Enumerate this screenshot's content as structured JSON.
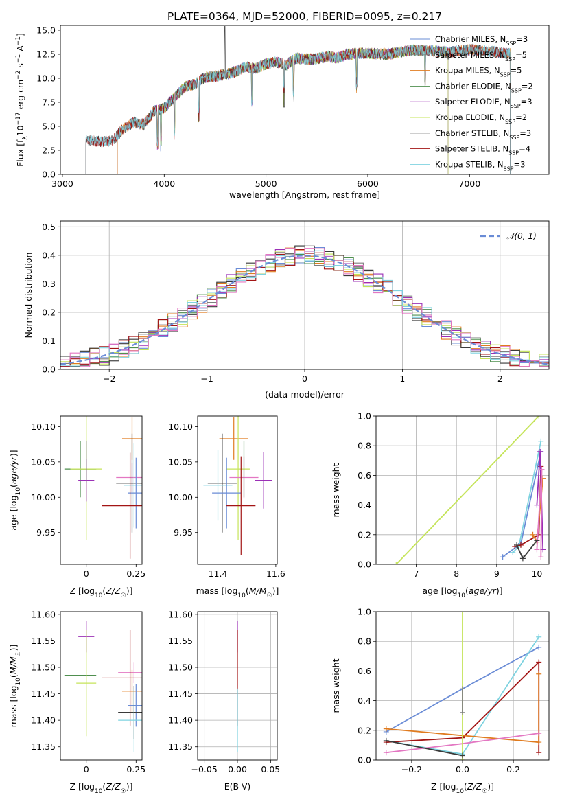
{
  "figure_title": "PLATE=0364, MJD=52000, FIBERID=0095, z=0.217",
  "colors": {
    "Chabrier MILES": "#6a8cd6",
    "Salpeter MILES": "#7f7f7f",
    "Kroupa MILES": "#e07b1f",
    "Chabrier ELODIE": "#4f8f4f",
    "Salpeter ELODIE": "#9b30b6",
    "Kroupa ELODIE": "#c5e45a",
    "Chabrier STELIB": "#3a3a3a",
    "Salpeter STELIB": "#a31515",
    "Kroupa STELIB": "#7fd3e0",
    "Pink": "#e377c2",
    "Gauss": "#6a8cd6"
  },
  "chart_data": [
    {
      "id": "spectrum",
      "type": "line",
      "xlabel": "wavelength [Angstrom, rest frame]",
      "ylabel": "Flux [f_λ10^-17 erg cm^-2 s^-1 A^-1]",
      "xlim": [
        2980,
        7780
      ],
      "ylim": [
        0,
        15.5
      ],
      "xticks": [
        3000,
        4000,
        5000,
        6000,
        7000
      ],
      "yticks": [
        "0.0",
        "2.5",
        "5.0",
        "7.5",
        "10.0",
        "12.5",
        "15.0"
      ],
      "legend": [
        {
          "base": "Chabrier MILES",
          "n": 3
        },
        {
          "base": "Salpeter MILES",
          "n": 5
        },
        {
          "base": "Kroupa MILES",
          "n": 5
        },
        {
          "base": "Chabrier ELODIE",
          "n": 2
        },
        {
          "base": "Salpeter ELODIE",
          "n": 3
        },
        {
          "base": "Kroupa ELODIE",
          "n": 2
        },
        {
          "base": "Chabrier STELIB",
          "n": 3
        },
        {
          "base": "Salpeter STELIB",
          "n": 4
        },
        {
          "base": "Kroupa STELIB",
          "n": 3
        }
      ],
      "continuum_x": [
        3200,
        3300,
        3400,
        3500,
        3600,
        3700,
        3800,
        3900,
        4000,
        4100,
        4200,
        4300,
        4400,
        4500,
        4600,
        4700,
        4800,
        4900,
        5000,
        5100,
        5200,
        5300,
        5400,
        5500,
        5600,
        5700,
        5800,
        5900,
        6000,
        6200,
        6400,
        6600,
        6800,
        7000,
        7200,
        7400
      ],
      "continuum_y": [
        3.6,
        3.5,
        3.4,
        3.6,
        4.8,
        5.4,
        5.2,
        6.6,
        6.9,
        8.0,
        9.1,
        9.4,
        10.1,
        10.2,
        10.4,
        10.7,
        11.2,
        11.0,
        11.5,
        11.7,
        11.4,
        12.1,
        12.0,
        12.0,
        12.3,
        12.1,
        12.5,
        12.6,
        12.6,
        12.5,
        12.9,
        12.9,
        12.7,
        13.0,
        12.8,
        12.6
      ],
      "start_x": {
        "Chabrier MILES": 3540,
        "Salpeter MILES": 3230,
        "Kroupa MILES": 3540,
        "Chabrier ELODIE": 3920,
        "Salpeter ELODIE": 3920,
        "Kroupa ELODIE": 3920,
        "Chabrier STELIB": 3230,
        "Salpeter STELIB": 3230,
        "Kroupa STELIB": 3230
      },
      "end_x": {
        "Chabrier MILES": 7400,
        "Salpeter MILES": 7400,
        "Kroupa MILES": 7400,
        "Chabrier ELODIE": 6790,
        "Salpeter ELODIE": 6790,
        "Kroupa ELODIE": 6790,
        "Chabrier STELIB": 7400,
        "Salpeter STELIB": 7400,
        "Kroupa STELIB": 7400
      }
    },
    {
      "id": "residuals",
      "type": "line",
      "xlabel": "(data-model)/error",
      "ylabel": "Normed distribution",
      "xlim": [
        -2.5,
        2.5
      ],
      "ylim": [
        0,
        0.52
      ],
      "xticks": [
        "−2",
        "−1",
        "0",
        "1",
        "2"
      ],
      "yticks": [
        "0.0",
        "0.1",
        "0.2",
        "0.3",
        "0.4",
        "0.5"
      ],
      "grid": true,
      "legend_label": "𝒩(0, 1)",
      "legend_position": "upper right",
      "bin_width": 0.1
    },
    {
      "id": "age_vs_Z",
      "type": "scatter",
      "xlabel": "Z [log10(Z/Z☉)]",
      "ylabel": "age [log10(age/yr)]",
      "xlim": [
        -0.13,
        0.28
      ],
      "ylim": [
        9.905,
        10.115
      ],
      "xticks": [
        0.0,
        0.25
      ],
      "yticks": [
        9.95,
        10.0,
        10.05,
        10.1
      ],
      "points": [
        {
          "model": "Kroupa MILES",
          "x": 0.23,
          "y": 10.083,
          "ex": 0.05,
          "ey": 0.03
        },
        {
          "model": "Chabrier ELODIE",
          "x": -0.03,
          "y": 10.04,
          "ex": 0.08,
          "ey": 0.04
        },
        {
          "model": "Kroupa ELODIE",
          "x": 0.0,
          "y": 10.04,
          "ex": 0.08,
          "ey": 0.1
        },
        {
          "model": "Salpeter ELODIE",
          "x": 0.0,
          "y": 10.024,
          "ex": 0.04,
          "ey": 0.03
        },
        {
          "model": "Pink",
          "x": 0.23,
          "y": 10.028,
          "ex": 0.08,
          "ey": 0.02
        },
        {
          "model": "Chabrier STELIB",
          "x": 0.23,
          "y": 10.02,
          "ex": 0.08,
          "ey": 0.07
        },
        {
          "model": "Kroupa STELIB",
          "x": 0.24,
          "y": 10.017,
          "ex": 0.05,
          "ey": 0.06
        },
        {
          "model": "Chabrier MILES",
          "x": 0.25,
          "y": 10.006,
          "ex": 0.04,
          "ey": 0.05
        },
        {
          "model": "Salpeter STELIB",
          "x": 0.22,
          "y": 9.988,
          "ex": 0.14,
          "ey": 0.075
        },
        {
          "model": "Salpeter MILES",
          "x": 0.0,
          "y": 10.05,
          "ex": 0.0,
          "ey": 0.03
        }
      ]
    },
    {
      "id": "age_vs_mass",
      "type": "scatter",
      "xlabel": "mass [log10(M/M☉)]",
      "ylabel": "",
      "xlim": [
        11.33,
        11.605
      ],
      "ylim": [
        9.905,
        10.115
      ],
      "xticks": [
        11.4,
        11.6
      ],
      "yticks": [
        9.95,
        10.0,
        10.05,
        10.1
      ],
      "points": [
        {
          "model": "Kroupa MILES",
          "x": 11.455,
          "y": 10.083,
          "ex": 0.05,
          "ey": 0.03
        },
        {
          "model": "Kroupa ELODIE",
          "x": 11.47,
          "y": 10.04,
          "ex": 0.04,
          "ey": 0.1
        },
        {
          "model": "Salpeter ELODIE",
          "x": 11.558,
          "y": 10.024,
          "ex": 0.03,
          "ey": 0.04
        },
        {
          "model": "Pink",
          "x": 11.49,
          "y": 10.028,
          "ex": 0.05,
          "ey": 0.03
        },
        {
          "model": "Chabrier STELIB",
          "x": 11.415,
          "y": 10.02,
          "ex": 0.05,
          "ey": 0.07
        },
        {
          "model": "Kroupa STELIB",
          "x": 11.4,
          "y": 10.017,
          "ex": 0.05,
          "ey": 0.05
        },
        {
          "model": "Chabrier MILES",
          "x": 11.43,
          "y": 10.006,
          "ex": 0.05,
          "ey": 0.05
        },
        {
          "model": "Salpeter STELIB",
          "x": 11.48,
          "y": 9.988,
          "ex": 0.05,
          "ey": 0.07
        },
        {
          "model": "Chabrier ELODIE",
          "x": 11.49,
          "y": 10.04,
          "ex": 0.0,
          "ey": 0.04
        }
      ]
    },
    {
      "id": "mw_vs_age",
      "type": "line",
      "xlabel": "age [log10(age/yr)]",
      "ylabel": "mass weight",
      "xlim": [
        6.0,
        10.3
      ],
      "ylim": [
        0,
        1.0
      ],
      "xticks": [
        7,
        8,
        9,
        10
      ],
      "yticks": [
        "0.0",
        "0.2",
        "0.4",
        "0.6",
        "0.8",
        "1.0"
      ],
      "grid": true,
      "series": [
        {
          "model": "Kroupa ELODIE",
          "x": [
            6.5,
            10.05
          ],
          "y": [
            0.0,
            1.0
          ]
        },
        {
          "model": "Chabrier MILES",
          "x": [
            9.15,
            9.6,
            10.1
          ],
          "y": [
            0.05,
            0.14,
            0.76
          ]
        },
        {
          "model": "Kroupa STELIB",
          "x": [
            9.4,
            9.55,
            10.1
          ],
          "y": [
            0.08,
            0.12,
            0.83
          ]
        },
        {
          "model": "Salpeter STELIB",
          "x": [
            9.45,
            9.6,
            10.05,
            10.1
          ],
          "y": [
            0.12,
            0.13,
            0.2,
            0.66
          ]
        },
        {
          "model": "Kroupa MILES",
          "x": [
            9.9,
            10.0,
            10.15
          ],
          "y": [
            0.2,
            0.15,
            0.58
          ]
        },
        {
          "model": "Salpeter ELODIE",
          "x": [
            10.0,
            10.08,
            10.15
          ],
          "y": [
            0.4,
            0.76,
            0.1
          ]
        },
        {
          "model": "Pink",
          "x": [
            10.0,
            10.12,
            10.1
          ],
          "y": [
            0.1,
            0.64,
            0.05
          ]
        },
        {
          "model": "Chabrier STELIB",
          "x": [
            9.5,
            9.65,
            10.0
          ],
          "y": [
            0.13,
            0.04,
            0.16
          ]
        }
      ]
    },
    {
      "id": "mass_vs_Z",
      "type": "scatter",
      "xlabel": "Z [log10(Z/Z☉)]",
      "ylabel": "mass [log10(M/M☉)]",
      "xlim": [
        -0.13,
        0.28
      ],
      "ylim": [
        11.325,
        11.605
      ],
      "xticks": [
        0.0,
        0.25
      ],
      "yticks": [
        11.35,
        11.4,
        11.45,
        11.5,
        11.55,
        11.6
      ],
      "points": [
        {
          "model": "Salpeter ELODIE",
          "x": 0.0,
          "y": 11.558,
          "ex": 0.04,
          "ey": 0.03
        },
        {
          "model": "Pink",
          "x": 0.24,
          "y": 11.49,
          "ex": 0.08,
          "ey": 0.02
        },
        {
          "model": "Chabrier ELODIE",
          "x": -0.03,
          "y": 11.485,
          "ex": 0.08,
          "ey": 0.0
        },
        {
          "model": "Salpeter STELIB",
          "x": 0.22,
          "y": 11.48,
          "ex": 0.14,
          "ey": 0.09
        },
        {
          "model": "Kroupa ELODIE",
          "x": 0.0,
          "y": 11.47,
          "ex": 0.05,
          "ey": 0.1
        },
        {
          "model": "Kroupa MILES",
          "x": 0.23,
          "y": 11.455,
          "ex": 0.05,
          "ey": 0.04
        },
        {
          "model": "Chabrier MILES",
          "x": 0.25,
          "y": 11.428,
          "ex": 0.04,
          "ey": 0.04
        },
        {
          "model": "Chabrier STELIB",
          "x": 0.24,
          "y": 11.415,
          "ex": 0.08,
          "ey": 0.05
        },
        {
          "model": "Kroupa STELIB",
          "x": 0.24,
          "y": 11.4,
          "ex": 0.08,
          "ey": 0.06
        }
      ]
    },
    {
      "id": "mass_vs_ebv",
      "type": "scatter",
      "xlabel": "E(B-V)",
      "ylabel": "",
      "xlim": [
        -0.06,
        0.06
      ],
      "ylim": [
        11.325,
        11.605
      ],
      "xticks": [
        "−0.05",
        "0.00",
        "0.05"
      ],
      "yticks": [
        11.35,
        11.4,
        11.45,
        11.5,
        11.55,
        11.6
      ],
      "grid": true,
      "points": [
        {
          "model": "Salpeter ELODIE",
          "x": 0.0,
          "y": 11.558,
          "ex": 0.0,
          "ey": 0.03
        },
        {
          "model": "Salpeter STELIB",
          "x": 0.0,
          "y": 11.48,
          "ex": 0.0,
          "ey": 0.09
        },
        {
          "model": "Kroupa STELIB",
          "x": 0.0,
          "y": 11.4,
          "ex": 0.0,
          "ey": 0.06
        }
      ]
    },
    {
      "id": "mw_vs_Z",
      "type": "line",
      "xlabel": "Z [log10(Z/Z☉)]",
      "ylabel": "mass weight",
      "xlim": [
        -0.34,
        0.34
      ],
      "ylim": [
        0,
        1.0
      ],
      "xticks": [
        "−0.2",
        "0.0",
        "0.2"
      ],
      "yticks": [
        "0.0",
        "0.2",
        "0.4",
        "0.6",
        "0.8",
        "1.0"
      ],
      "grid": true,
      "series": [
        {
          "model": "Chabrier MILES",
          "x": [
            -0.3,
            0.0,
            0.3
          ],
          "y": [
            0.19,
            0.48,
            0.76
          ]
        },
        {
          "model": "Kroupa STELIB",
          "x": [
            -0.3,
            0.0,
            0.3
          ],
          "y": [
            0.13,
            0.04,
            0.83
          ]
        },
        {
          "model": "Salpeter STELIB",
          "x": [
            -0.3,
            0.0,
            0.3,
            0.3
          ],
          "y": [
            0.12,
            0.15,
            0.66,
            0.05
          ]
        },
        {
          "model": "Kroupa MILES",
          "x": [
            -0.3,
            0.3,
            0.3
          ],
          "y": [
            0.21,
            0.12,
            0.58
          ]
        },
        {
          "model": "Pink",
          "x": [
            -0.3,
            0.0,
            0.3
          ],
          "y": [
            0.05,
            0.11,
            0.18
          ]
        },
        {
          "model": "Kroupa ELODIE",
          "x": [
            0.0,
            0.0
          ],
          "y": [
            0.0,
            1.0
          ]
        },
        {
          "model": "Salpeter MILES",
          "x": [
            0.0,
            0.0
          ],
          "y": [
            0.32,
            0.48
          ]
        },
        {
          "model": "Chabrier STELIB",
          "x": [
            -0.3,
            0.0
          ],
          "y": [
            0.13,
            0.03
          ]
        }
      ]
    }
  ]
}
